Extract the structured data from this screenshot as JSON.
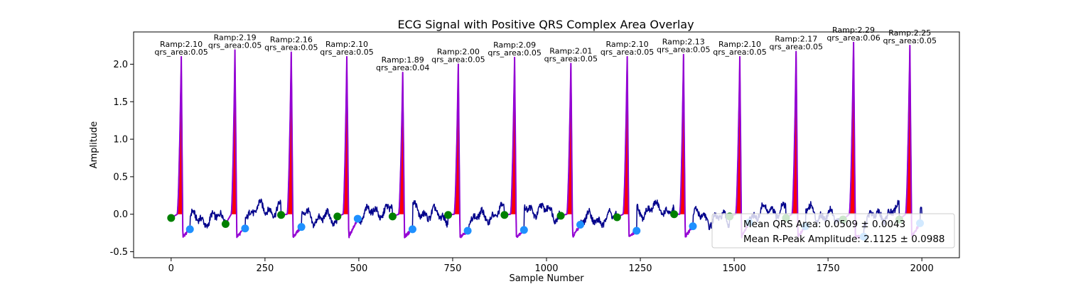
{
  "chart_data": {
    "type": "line",
    "title": "ECG Signal with Positive QRS Complex Area Overlay",
    "xlabel": "Sample Number",
    "ylabel": "Amplitude",
    "xlim": [
      -100,
      2100
    ],
    "ylim": [
      -0.58,
      2.43
    ],
    "xticks": [
      0,
      250,
      500,
      750,
      1000,
      1250,
      1500,
      1750,
      2000
    ],
    "yticks": [
      -0.5,
      0.0,
      0.5,
      1.0,
      1.5,
      2.0
    ],
    "grid": false,
    "colors": {
      "signal": "#00008b",
      "qrs_fill": "#ff0000",
      "qrs_line": "#9400d3",
      "q_marker": "#008000",
      "s_marker": "#1e90ff"
    },
    "beats": [
      {
        "r": 27,
        "amp": 2.1,
        "area": 0.05,
        "q": 0,
        "s": 50,
        "q_amp": -0.05,
        "s_amp": -0.2,
        "label": [
          "Ramp:2.10",
          "qrs_area:0.05"
        ]
      },
      {
        "r": 170,
        "amp": 2.19,
        "area": 0.05,
        "q": 145,
        "s": 197,
        "q_amp": -0.13,
        "s_amp": -0.19,
        "label": [
          "Ramp:2.19",
          "qrs_area:0.05"
        ]
      },
      {
        "r": 320,
        "amp": 2.16,
        "area": 0.05,
        "q": 293,
        "s": 347,
        "q_amp": -0.01,
        "s_amp": -0.17,
        "label": [
          "Ramp:2.16",
          "qrs_area:0.05"
        ]
      },
      {
        "r": 468,
        "amp": 2.1,
        "area": 0.05,
        "q": 443,
        "s": 497,
        "q_amp": -0.03,
        "s_amp": -0.06,
        "label": [
          "Ramp:2.10",
          "qrs_area:0.05"
        ]
      },
      {
        "r": 617,
        "amp": 1.89,
        "area": 0.04,
        "q": 590,
        "s": 643,
        "q_amp": -0.03,
        "s_amp": -0.2,
        "label": [
          "Ramp:1.89",
          "qrs_area:0.04"
        ]
      },
      {
        "r": 765,
        "amp": 2.0,
        "area": 0.05,
        "q": 738,
        "s": 790,
        "q_amp": -0.01,
        "s_amp": -0.22,
        "label": [
          "Ramp:2.00",
          "qrs_area:0.05"
        ]
      },
      {
        "r": 915,
        "amp": 2.09,
        "area": 0.05,
        "q": 888,
        "s": 940,
        "q_amp": -0.01,
        "s_amp": -0.21,
        "label": [
          "Ramp:2.09",
          "qrs_area:0.05"
        ]
      },
      {
        "r": 1065,
        "amp": 2.01,
        "area": 0.05,
        "q": 1038,
        "s": 1090,
        "q_amp": -0.02,
        "s_amp": -0.14,
        "label": [
          "Ramp:2.01",
          "qrs_area:0.05"
        ]
      },
      {
        "r": 1215,
        "amp": 2.1,
        "area": 0.05,
        "q": 1188,
        "s": 1240,
        "q_amp": -0.04,
        "s_amp": -0.22,
        "label": [
          "Ramp:2.10",
          "qrs_area:0.05"
        ]
      },
      {
        "r": 1365,
        "amp": 2.13,
        "area": 0.05,
        "q": 1340,
        "s": 1390,
        "q_amp": 0.0,
        "s_amp": -0.16,
        "label": [
          "Ramp:2.13",
          "qrs_area:0.05"
        ]
      },
      {
        "r": 1515,
        "amp": 2.1,
        "area": 0.05,
        "q": 1488,
        "s": 1540,
        "q_amp": -0.03,
        "s_amp": -0.11,
        "label": [
          "Ramp:2.10",
          "qrs_area:0.05"
        ]
      },
      {
        "r": 1665,
        "amp": 2.17,
        "area": 0.05,
        "q": 1638,
        "s": 1690,
        "q_amp": -0.05,
        "s_amp": -0.16,
        "label": [
          "Ramp:2.17",
          "qrs_area:0.05"
        ]
      },
      {
        "r": 1818,
        "amp": 2.29,
        "area": 0.06,
        "q": 1790,
        "s": 1845,
        "q_amp": -0.07,
        "s_amp": -0.3,
        "label": [
          "Ramp:2.29",
          "qrs_area:0.06"
        ]
      },
      {
        "r": 1968,
        "amp": 2.25,
        "area": 0.05,
        "q": 1940,
        "s": 1995,
        "q_amp": -0.07,
        "s_amp": -0.12,
        "label": [
          "Ramp:2.25",
          "qrs_area:0.05"
        ]
      }
    ],
    "legend": {
      "placement": "lower-right",
      "entries": [
        "Mean QRS Area: 0.0509 ± 0.0043",
        "Mean R-Peak Amplitude: 2.1125 ± 0.0988"
      ]
    }
  }
}
